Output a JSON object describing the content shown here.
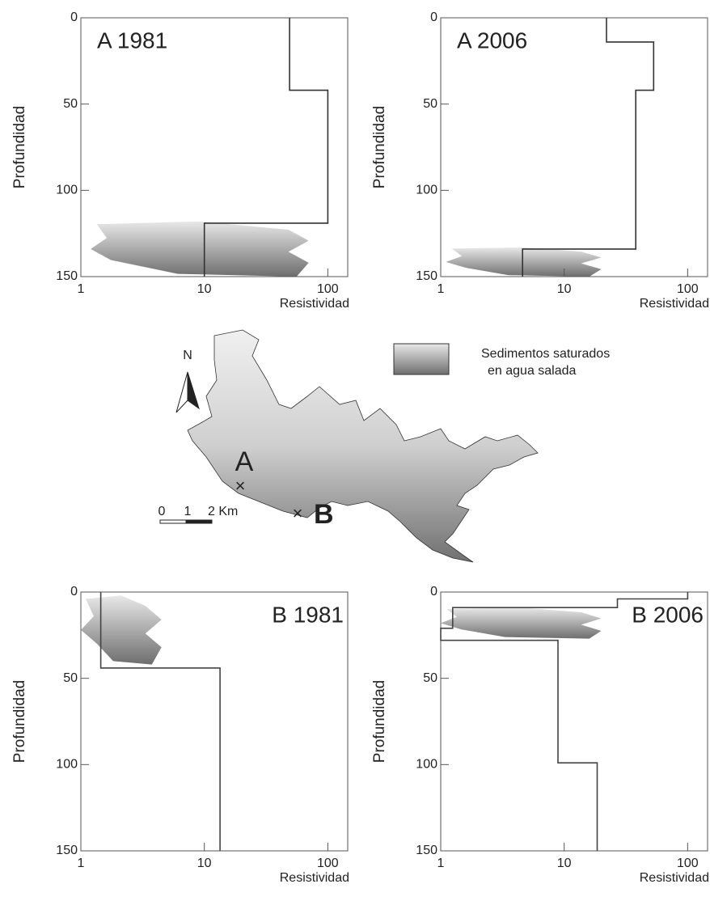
{
  "chart_data": [
    {
      "type": "step",
      "title": "A 1981",
      "xlabel": "Resistividad",
      "ylabel": "Profundidad",
      "x": [
        49,
        49,
        100,
        100,
        10,
        10
      ],
      "values": [
        0,
        42,
        42,
        119,
        119,
        150
      ],
      "xlim": [
        1,
        145
      ],
      "ylim": [
        0,
        150
      ],
      "xticks": [
        1,
        10,
        100
      ],
      "yticks": [
        0,
        50,
        100,
        150
      ],
      "xscale": "log",
      "yinverted": true,
      "color": "#333333",
      "saturated_zone": {
        "depth": [
          118,
          150
        ],
        "resistivity": [
          1.2,
          70
        ]
      }
    },
    {
      "type": "step",
      "title": "A 2006",
      "xlabel": "Resistividad",
      "ylabel": "Profundidad",
      "x": [
        22,
        22,
        53,
        53,
        38,
        38,
        4.6,
        4.6
      ],
      "values": [
        0,
        14,
        14,
        42,
        42,
        134,
        134,
        150
      ],
      "xlim": [
        1,
        145
      ],
      "ylim": [
        0,
        150
      ],
      "xticks": [
        1,
        10,
        100
      ],
      "yticks": [
        0,
        50,
        100,
        150
      ],
      "xscale": "log",
      "yinverted": true,
      "color": "#333333",
      "saturated_zone": {
        "depth": [
          133,
          150
        ],
        "resistivity": [
          1.1,
          20
        ]
      }
    },
    {
      "type": "step",
      "title": "B 1981",
      "xlabel": "Resistividad",
      "ylabel": "Profundidad",
      "x": [
        1.45,
        1.45,
        13.4,
        13.4
      ],
      "values": [
        0,
        44,
        44,
        150
      ],
      "xlim": [
        1,
        145
      ],
      "ylim": [
        0,
        150
      ],
      "xticks": [
        1,
        10,
        100
      ],
      "yticks": [
        0,
        50,
        100,
        150
      ],
      "xscale": "log",
      "yinverted": true,
      "color": "#444444",
      "saturated_zone": {
        "depth": [
          2,
          42
        ],
        "resistivity": [
          1,
          4.5
        ]
      }
    },
    {
      "type": "step",
      "title": "B 2006",
      "xlabel": "Resistividad",
      "ylabel": "Profundidad",
      "x": [
        100,
        100,
        27,
        27,
        1.25,
        1.25,
        1,
        1,
        8.9,
        8.9,
        18.5,
        18.5
      ],
      "values": [
        0,
        4,
        4,
        9,
        9,
        21,
        21,
        28,
        28,
        99,
        99,
        150
      ],
      "xlim": [
        1,
        145
      ],
      "ylim": [
        0,
        150
      ],
      "xticks": [
        1,
        10,
        100
      ],
      "yticks": [
        0,
        50,
        100,
        150
      ],
      "xscale": "log",
      "yinverted": true,
      "color": "#444444",
      "saturated_zone": {
        "depth": [
          9,
          27
        ],
        "resistivity": [
          1,
          20
        ]
      }
    }
  ],
  "map": {
    "north": "N",
    "sites": [
      "A",
      "B"
    ],
    "scale": [
      "0",
      "1",
      "2 Km"
    ],
    "legend": [
      "Sedimentos saturados",
      "en agua salada"
    ]
  }
}
